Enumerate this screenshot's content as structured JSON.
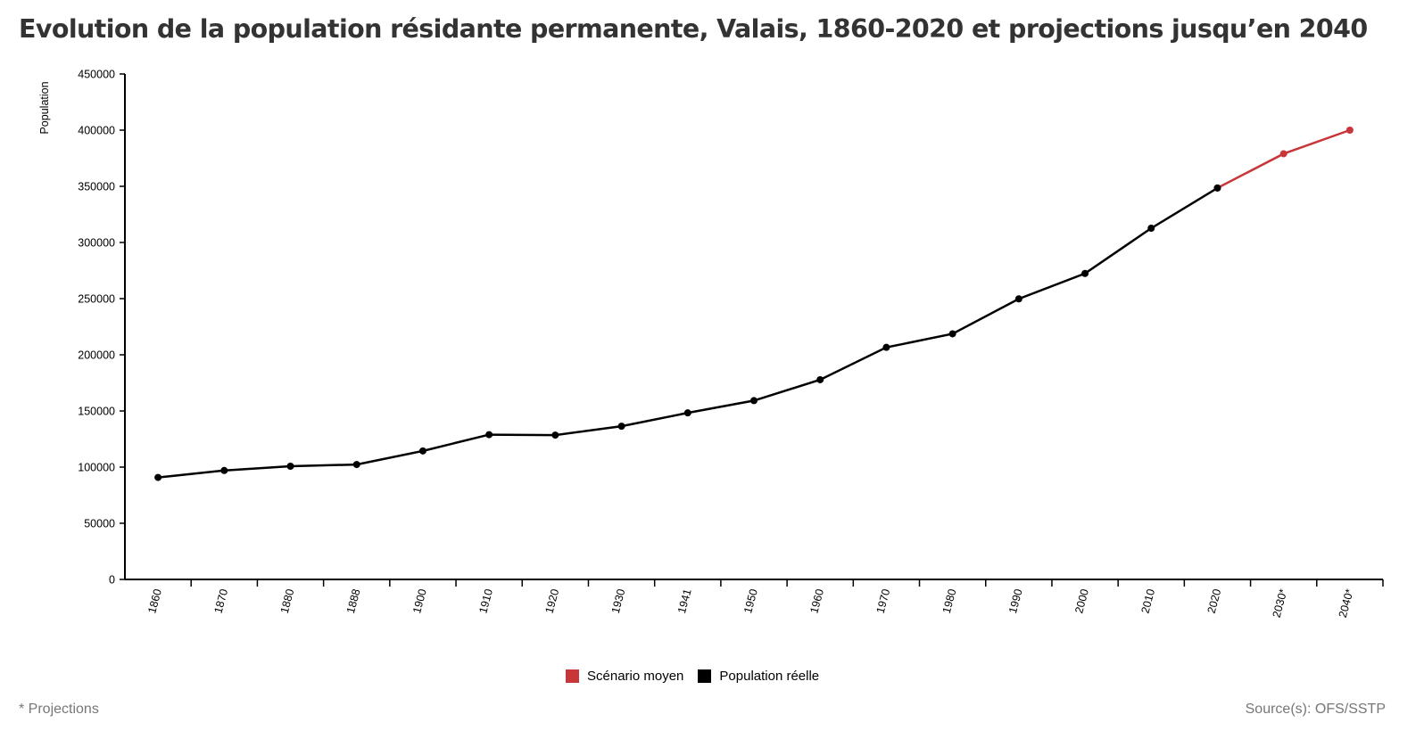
{
  "title": "Evolution de la population résidante permanente, Valais, 1860-2020 et projections jusqu’en 2040",
  "chart_data": {
    "type": "line",
    "title": "Evolution de la population résidante permanente, Valais, 1860-2020 et projections jusqu’en 2040",
    "xlabel": "",
    "ylabel": "Population",
    "ylim": [
      0,
      450000
    ],
    "yticks": [
      "0",
      "50000",
      "100000",
      "150000",
      "200000",
      "250000",
      "300000",
      "350000",
      "400000",
      "450000"
    ],
    "categories": [
      "1860",
      "1870",
      "1880",
      "1888",
      "1900",
      "1910",
      "1920",
      "1930",
      "1941",
      "1950",
      "1960",
      "1970",
      "1980",
      "1990",
      "2000",
      "2010",
      "2020",
      "2030*",
      "2040*"
    ],
    "series": [
      {
        "name": "Population réelle",
        "color": "#000000",
        "values": [
          90800,
          97000,
          100800,
          102300,
          114400,
          128900,
          128500,
          136400,
          148300,
          159200,
          177800,
          206600,
          218700,
          249800,
          272400,
          312700,
          348500,
          null,
          null
        ]
      },
      {
        "name": "Scénario moyen",
        "color": "#c8363a",
        "values": [
          null,
          null,
          null,
          null,
          null,
          null,
          null,
          null,
          null,
          null,
          null,
          null,
          null,
          null,
          null,
          null,
          348500,
          379000,
          400000
        ]
      }
    ],
    "legend": [
      {
        "label": "Scénario moyen",
        "color": "#c8363a"
      },
      {
        "label": "Population réelle",
        "color": "#000000"
      }
    ],
    "legend_position": "bottom-center",
    "grid": false
  },
  "footnote": "* Projections",
  "source": "Source(s): OFS/SSTP"
}
